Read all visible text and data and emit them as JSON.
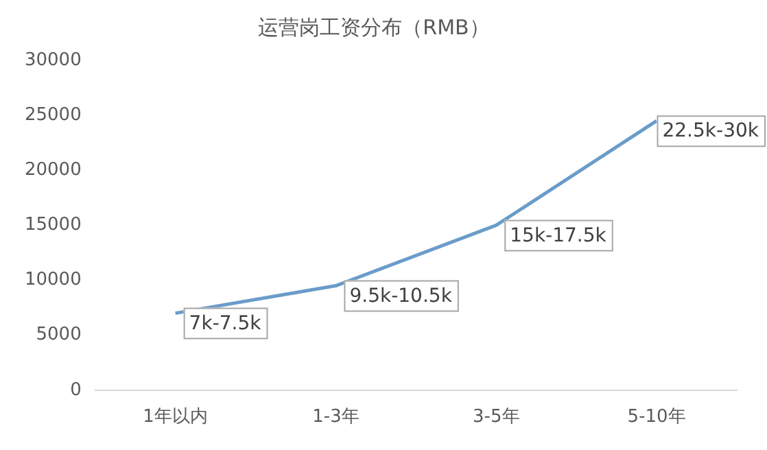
{
  "chart_data": {
    "type": "line",
    "title": "运营岗工资分布（RMB）",
    "categories": [
      "1年以内",
      "1-3年",
      "3-5年",
      "5-10年"
    ],
    "series": [
      {
        "color": "#6a9cc9",
        "values": [
          7000,
          9500,
          15000,
          24500
        ]
      }
    ],
    "annotations": [
      {
        "text": "7k-7.5k",
        "x": "1年以内",
        "y": 7000
      },
      {
        "text": "9.5k-10.5k",
        "x": "1-3年",
        "y": 9500
      },
      {
        "text": "15k-17.5k",
        "x": "3-5年",
        "y": 15000
      },
      {
        "text": "22.5k-30k",
        "x": "5-10年",
        "y": 24500
      }
    ],
    "ylim": [
      0,
      30000
    ],
    "yticks": [
      0,
      5000,
      10000,
      15000,
      20000,
      25000,
      30000
    ],
    "grid": false,
    "legend": false,
    "marker": "none",
    "line_style": "solid"
  }
}
